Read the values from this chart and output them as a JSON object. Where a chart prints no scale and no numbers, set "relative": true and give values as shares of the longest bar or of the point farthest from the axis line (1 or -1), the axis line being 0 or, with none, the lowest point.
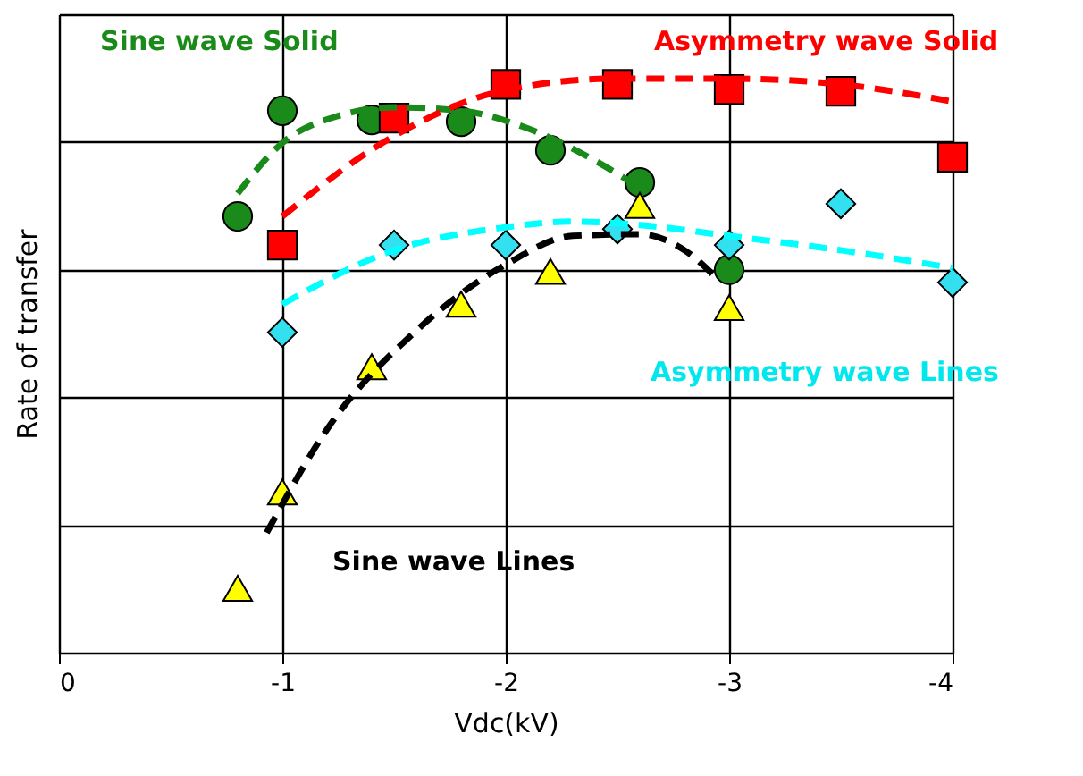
{
  "chart_data": {
    "type": "scatter",
    "relative": true,
    "xlabel": "Vdc(kV)",
    "ylabel": "Rate of transfer",
    "xlim": [
      0,
      -4
    ],
    "xticks": [
      0,
      -1,
      -2,
      -3,
      -4
    ],
    "grid": true,
    "series": [
      {
        "color": "#1a8a1a",
        "marker": "circle",
        "x": [
          -0.8,
          -1,
          -1.4,
          -1.8,
          -2.2,
          -2.6,
          -3
        ],
        "values": [
          0.76,
          0.944,
          0.928,
          0.925,
          0.875,
          0.819,
          0.667
        ]
      },
      {
        "color": "#ff0000",
        "marker": "square",
        "x": [
          -1,
          -1.5,
          -2,
          -2.5,
          -3,
          -3.5,
          -4
        ],
        "values": [
          0.71,
          0.931,
          0.99,
          0.99,
          0.981,
          0.978,
          0.863
        ]
      },
      {
        "color": "#33e0f0",
        "marker": "diamond",
        "x": [
          -1,
          -1.5,
          -2,
          -2.5,
          -3,
          -3.5,
          -4
        ],
        "values": [
          0.558,
          0.71,
          0.71,
          0.738,
          0.71,
          0.782,
          0.645
        ]
      },
      {
        "color": "#ffff00",
        "marker": "triangle",
        "x": [
          -0.8,
          -1,
          -1.4,
          -1.8,
          -2.2,
          -2.6,
          -3
        ],
        "values": [
          0.112,
          0.28,
          0.498,
          0.607,
          0.664,
          0.779,
          0.601
        ]
      },
      {
        "type": "line",
        "name": "Sine wave Solid",
        "color": "#1a8a1a",
        "line_style": "dashed",
        "marker": "none",
        "x": [
          -0.8,
          -1,
          -1.25,
          -1.5,
          -1.8,
          -2.1,
          -2.4,
          -2.6
        ],
        "values": [
          0.8,
          0.888,
          0.935,
          0.95,
          0.944,
          0.913,
          0.857,
          0.81
        ]
      },
      {
        "type": "line",
        "name": "Asymmetry wave Solid",
        "color": "#ff0000",
        "line_style": "dashed",
        "marker": "none",
        "x": [
          -1,
          -1.5,
          -2,
          -2.5,
          -3,
          -3.5,
          -4
        ],
        "values": [
          0.76,
          0.9,
          0.98,
          1.0,
          1.0,
          0.99,
          0.96
        ]
      },
      {
        "type": "line",
        "name": "Asymmetry wave Lines",
        "color": "#00ffff",
        "line_style": "dashed",
        "marker": "none",
        "x": [
          -1,
          -1.5,
          -2,
          -2.3,
          -2.6,
          -3,
          -3.5,
          -4
        ],
        "values": [
          0.607,
          0.701,
          0.741,
          0.751,
          0.745,
          0.726,
          0.701,
          0.67
        ]
      },
      {
        "type": "line",
        "name": "Sine wave Lines",
        "color": "#000000",
        "line_style": "dashed",
        "marker": "none",
        "x": [
          -0.93,
          -1.2,
          -1.6,
          -2,
          -2.3,
          -2.6,
          -2.8,
          -2.95
        ],
        "values": [
          0.209,
          0.389,
          0.561,
          0.676,
          0.726,
          0.729,
          0.701,
          0.65
        ]
      }
    ]
  }
}
